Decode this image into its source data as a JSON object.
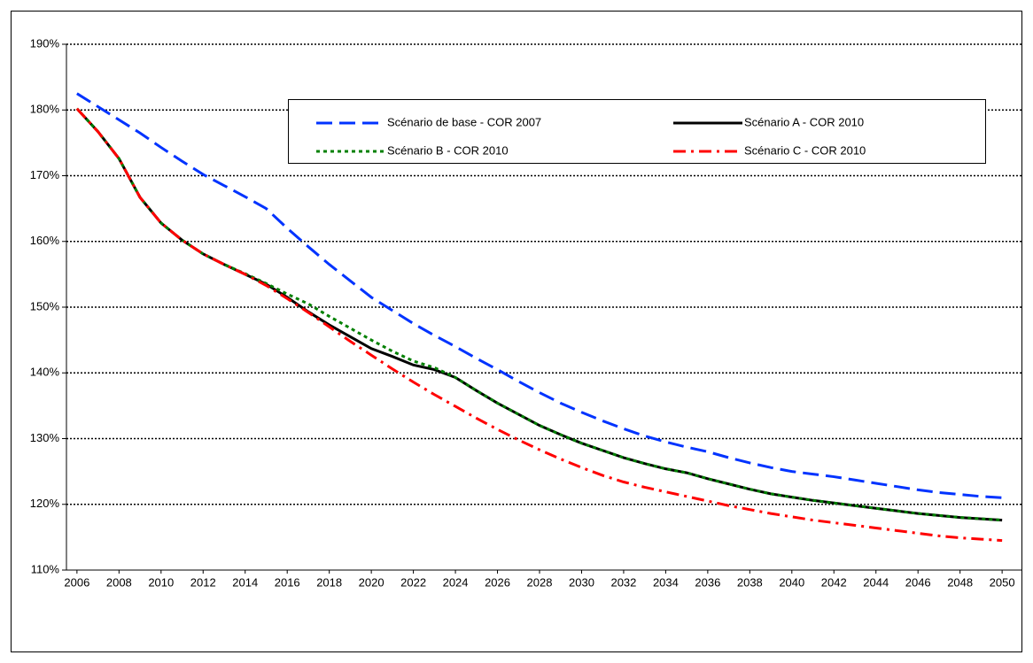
{
  "chart_data": {
    "type": "line",
    "x": [
      2006,
      2007,
      2008,
      2009,
      2010,
      2011,
      2012,
      2013,
      2014,
      2015,
      2016,
      2017,
      2018,
      2019,
      2020,
      2021,
      2022,
      2023,
      2024,
      2025,
      2026,
      2027,
      2028,
      2029,
      2030,
      2031,
      2032,
      2033,
      2034,
      2035,
      2036,
      2037,
      2038,
      2039,
      2040,
      2041,
      2042,
      2043,
      2044,
      2045,
      2046,
      2047,
      2048,
      2049,
      2050
    ],
    "xlim": [
      2005.5,
      2050.5
    ],
    "xticks": [
      2006,
      2008,
      2010,
      2012,
      2014,
      2016,
      2018,
      2020,
      2022,
      2024,
      2026,
      2028,
      2030,
      2032,
      2034,
      2036,
      2038,
      2040,
      2042,
      2044,
      2046,
      2048,
      2050
    ],
    "ylim": [
      110,
      190
    ],
    "yticks": [
      {
        "value": 110,
        "label": "110%"
      },
      {
        "value": 120,
        "label": "120%"
      },
      {
        "value": 130,
        "label": "130%"
      },
      {
        "value": 140,
        "label": "140%"
      },
      {
        "value": 150,
        "label": "150%"
      },
      {
        "value": 160,
        "label": "160%"
      },
      {
        "value": 170,
        "label": "170%"
      },
      {
        "value": 180,
        "label": "180%"
      },
      {
        "value": 190,
        "label": "190%"
      }
    ],
    "grid": true,
    "legend": "top",
    "series": [
      {
        "name": "Scénario de base - COR 2007",
        "color": "#0033ff",
        "style": "dashed",
        "values": [
          182.5,
          180.5,
          178.5,
          176.5,
          174.3,
          172.2,
          170.2,
          168.5,
          166.8,
          165,
          162,
          159.2,
          156.5,
          154,
          151.5,
          149.5,
          147.5,
          145.7,
          144,
          142.2,
          140.5,
          138.7,
          137,
          135.4,
          134,
          132.7,
          131.5,
          130.4,
          129.5,
          128.7,
          128,
          127.1,
          126.3,
          125.6,
          125,
          124.6,
          124.2,
          123.7,
          123.2,
          122.7,
          122.2,
          121.8,
          121.5,
          121.2,
          121
        ]
      },
      {
        "name": "Scénario A - COR 2010",
        "color": "#000000",
        "style": "solid",
        "values": [
          180.2,
          176.7,
          172.6,
          166.7,
          162.8,
          160.2,
          158.1,
          156.5,
          155,
          153.5,
          151.5,
          149.3,
          147.3,
          145.5,
          143.7,
          142.5,
          141.2,
          140.5,
          139.3,
          137.3,
          135.4,
          133.7,
          132,
          130.6,
          129.3,
          128.2,
          127.1,
          126.2,
          125.4,
          124.8,
          123.9,
          123.1,
          122.3,
          121.6,
          121.1,
          120.6,
          120.2,
          119.8,
          119.4,
          119,
          118.6,
          118.3,
          118,
          117.8,
          117.6
        ]
      },
      {
        "name": "Scénario B - COR 2010",
        "color": "#008000",
        "style": "dotted",
        "values": [
          180.2,
          176.7,
          172.6,
          166.7,
          162.8,
          160.2,
          158.1,
          156.5,
          155.1,
          153.6,
          152,
          150.5,
          148.6,
          146.8,
          145,
          143.3,
          141.8,
          140.8,
          139.3,
          137.3,
          135.4,
          133.7,
          132,
          130.6,
          129.3,
          128.2,
          127.1,
          126.2,
          125.4,
          124.8,
          123.9,
          123.1,
          122.3,
          121.6,
          121.1,
          120.6,
          120.2,
          119.8,
          119.4,
          119,
          118.6,
          118.3,
          118,
          117.8,
          117.6
        ]
      },
      {
        "name": "Scénario C - COR 2010",
        "color": "#ff0000",
        "style": "dashdot",
        "values": [
          180.2,
          176.7,
          172.6,
          166.7,
          162.8,
          160.2,
          158.1,
          156.5,
          155,
          153.3,
          151.3,
          149.2,
          147,
          144.8,
          142.7,
          140.6,
          138.6,
          136.7,
          134.9,
          133.1,
          131.4,
          129.8,
          128.3,
          126.9,
          125.6,
          124.4,
          123.4,
          122.6,
          121.9,
          121.2,
          120.5,
          119.8,
          119.2,
          118.6,
          118.1,
          117.6,
          117.2,
          116.8,
          116.4,
          116,
          115.6,
          115.2,
          114.9,
          114.7,
          114.5
        ]
      }
    ]
  }
}
